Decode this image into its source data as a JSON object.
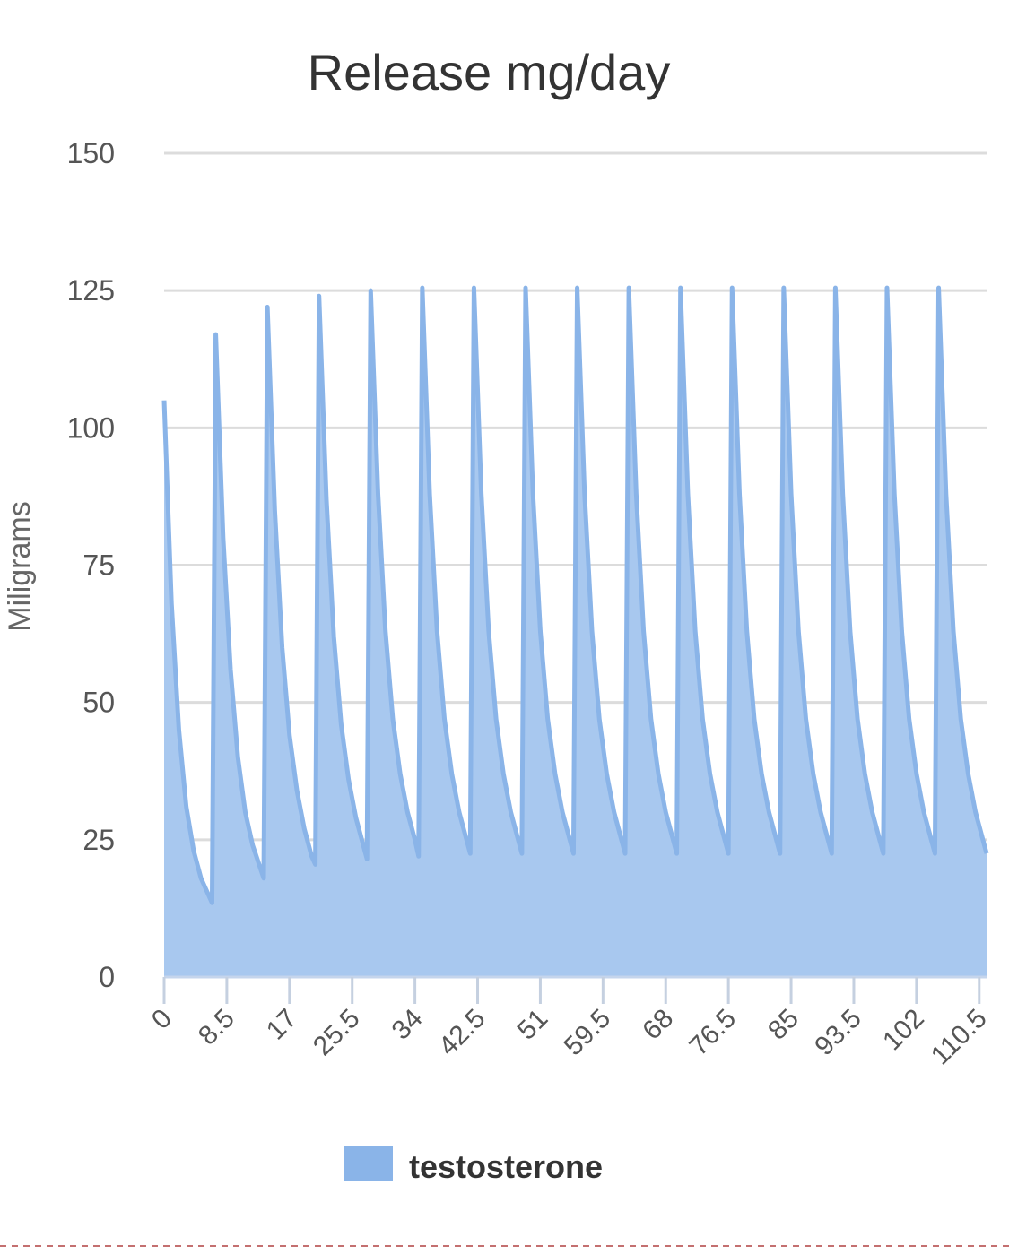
{
  "chart_data": {
    "type": "area",
    "title": "Release mg/day",
    "y_label": "Miligrams",
    "x": [
      0,
      1,
      2,
      3,
      4,
      5,
      6,
      6.5,
      7,
      8,
      9,
      10,
      11,
      12,
      13,
      13.5,
      14,
      15,
      16,
      17,
      18,
      19,
      20,
      20.5,
      21,
      22,
      23,
      24,
      25,
      26,
      27,
      27.5,
      28,
      29,
      30,
      31,
      32,
      33,
      34,
      34.5,
      35,
      36,
      37,
      38,
      39,
      40,
      41,
      41.5,
      42,
      43,
      44,
      45,
      46,
      47,
      48,
      48.5,
      49,
      50,
      51,
      52,
      53,
      54,
      55,
      55.5,
      56,
      57,
      58,
      59,
      60,
      61,
      62,
      62.5,
      63,
      64,
      65,
      66,
      67,
      68,
      69,
      69.5,
      70,
      71,
      72,
      73,
      74,
      75,
      76,
      76.5,
      77,
      78,
      79,
      80,
      81,
      82,
      83,
      83.5,
      84,
      85,
      86,
      87,
      88,
      89,
      90,
      90.5,
      91,
      92,
      93,
      94,
      95,
      96,
      97,
      97.5,
      98,
      99,
      100,
      101,
      102,
      103,
      104,
      104.5,
      105,
      106,
      107,
      108,
      109,
      110,
      111,
      111.5
    ],
    "series": [
      {
        "name": "testosterone",
        "color": "#8ab4e8",
        "fill": "#a8c8ef",
        "values": [
          105,
          68,
          45,
          31,
          23,
          18,
          15,
          13.5,
          117,
          80,
          56,
          40,
          30,
          24,
          20,
          18,
          122,
          85,
          60,
          44,
          34,
          27,
          22,
          20.5,
          124,
          87,
          62,
          46,
          36,
          29,
          24,
          21.5,
          125,
          88,
          63,
          47,
          37,
          30,
          25,
          22,
          125.5,
          88,
          63,
          47,
          37,
          30,
          25,
          22.5,
          125.5,
          88,
          63,
          47,
          37,
          30,
          25,
          22.5,
          125.5,
          88,
          63,
          47,
          37,
          30,
          25,
          22.5,
          125.5,
          88,
          63,
          47,
          37,
          30,
          25,
          22.5,
          125.5,
          88,
          63,
          47,
          37,
          30,
          25,
          22.5,
          125.5,
          88,
          63,
          47,
          37,
          30,
          25,
          22.5,
          125.5,
          88,
          63,
          47,
          37,
          30,
          25,
          22.5,
          125.5,
          88,
          63,
          47,
          37,
          30,
          25,
          22.5,
          125.5,
          88,
          63,
          47,
          37,
          30,
          25,
          22.5,
          125.5,
          88,
          63,
          47,
          37,
          30,
          25,
          22.5,
          125.5,
          88,
          63,
          47,
          37,
          30,
          25,
          22.5
        ]
      }
    ],
    "xlim": [
      0,
      111.5
    ],
    "xticks": [
      0,
      8.5,
      17,
      25.5,
      34,
      42.5,
      51,
      59.5,
      68,
      76.5,
      85,
      93.5,
      102,
      110.5
    ],
    "ylim": [
      0,
      150
    ],
    "yticks": [
      0,
      25,
      50,
      75,
      100,
      125,
      150
    ],
    "grid": true,
    "legend": "bottom"
  }
}
